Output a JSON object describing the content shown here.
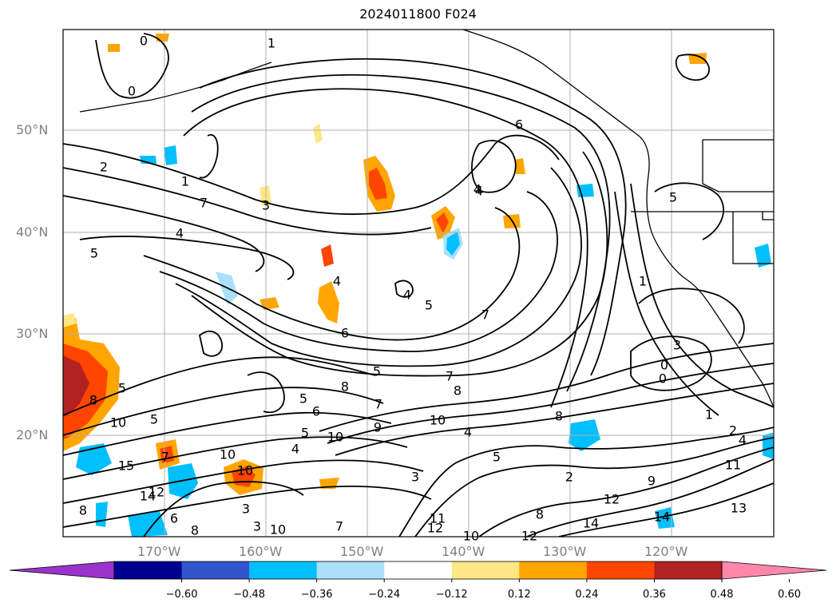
{
  "title": "2024011800 F024",
  "lat_labels": [
    "50°N",
    "40°N",
    "30°N",
    "20°N"
  ],
  "lon_labels": [
    "170°W",
    "160°W",
    "150°W",
    "140°W",
    "130°W",
    "120°W"
  ],
  "colorbar": {
    "colors": [
      "#9933cc",
      "#000090",
      "#3355cc",
      "#00bfff",
      "#aae0fa",
      "#ffffff",
      "#ffe785",
      "#ffa500",
      "#ff4500",
      "#b22222",
      "#ff88aa"
    ],
    "ticks": [
      "−0.60",
      "−0.48",
      "−0.36",
      "−0.24",
      "−0.12",
      "0.12",
      "0.24",
      "0.36",
      "0.48",
      "0.60"
    ]
  },
  "contour_labels": [
    {
      "t": "0"
    },
    {
      "t": "1"
    },
    {
      "t": "0"
    },
    {
      "t": "2"
    },
    {
      "t": "1"
    },
    {
      "t": "7"
    },
    {
      "t": "3"
    },
    {
      "t": "4"
    },
    {
      "t": "5"
    },
    {
      "t": "6"
    },
    {
      "t": "4"
    },
    {
      "t": "4"
    },
    {
      "t": "5"
    },
    {
      "t": "6"
    },
    {
      "t": "7"
    },
    {
      "t": "5"
    },
    {
      "t": "4"
    },
    {
      "t": "4"
    },
    {
      "t": "1"
    },
    {
      "t": "3"
    },
    {
      "t": "0"
    },
    {
      "t": "0"
    },
    {
      "t": "5"
    },
    {
      "t": "7"
    },
    {
      "t": "8"
    },
    {
      "t": "8"
    },
    {
      "t": "10"
    },
    {
      "t": "9"
    },
    {
      "t": "10"
    },
    {
      "t": "7"
    },
    {
      "t": "4"
    },
    {
      "t": "5"
    },
    {
      "t": "8"
    },
    {
      "t": "1"
    },
    {
      "t": "2"
    },
    {
      "t": "4"
    },
    {
      "t": "5"
    },
    {
      "t": "3"
    },
    {
      "t": "2"
    },
    {
      "t": "9"
    },
    {
      "t": "11"
    },
    {
      "t": "12"
    },
    {
      "t": "13"
    },
    {
      "t": "14"
    },
    {
      "t": "14"
    },
    {
      "t": "12"
    },
    {
      "t": "10"
    },
    {
      "t": "8"
    },
    {
      "t": "7"
    },
    {
      "t": "11"
    },
    {
      "t": "12"
    },
    {
      "t": "10"
    },
    {
      "t": "5"
    },
    {
      "t": "6"
    },
    {
      "t": "4"
    },
    {
      "t": "3"
    },
    {
      "t": "8"
    },
    {
      "t": "10"
    },
    {
      "t": "15"
    },
    {
      "t": "14"
    },
    {
      "t": "12"
    },
    {
      "t": "7"
    },
    {
      "t": "8"
    },
    {
      "t": "5"
    },
    {
      "t": "10"
    },
    {
      "t": "8"
    },
    {
      "t": "5"
    },
    {
      "t": "3"
    },
    {
      "t": "10"
    },
    {
      "t": "6"
    }
  ]
}
